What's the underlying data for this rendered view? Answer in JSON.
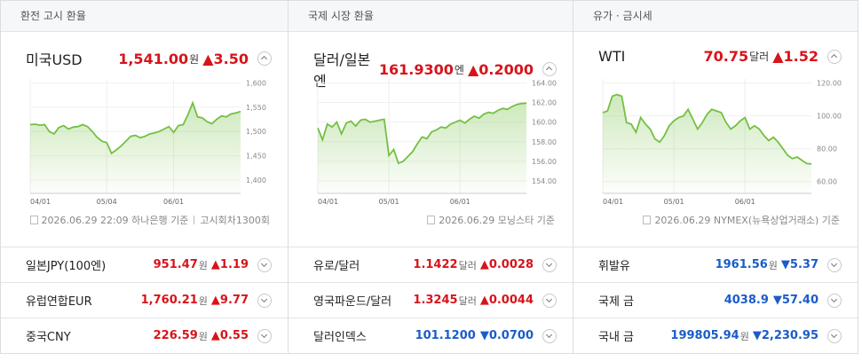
{
  "panels": [
    {
      "title": "환전 고시 환율",
      "quote": {
        "name": "미국USD",
        "price": "1,541.00",
        "unit": "원",
        "change": "▲3.50",
        "direction": "up"
      },
      "chart_data": {
        "type": "line",
        "color": "#74c043",
        "grid": true,
        "categories": [
          "04/01",
          null,
          null,
          null,
          null,
          null,
          null,
          null,
          null,
          null,
          null,
          null,
          null,
          null,
          null,
          null,
          "05/04",
          null,
          null,
          null,
          null,
          null,
          null,
          null,
          null,
          null,
          null,
          null,
          null,
          null,
          "06/01",
          null,
          null,
          null,
          null,
          null,
          null,
          null,
          null,
          null,
          null,
          null,
          null,
          null,
          null
        ],
        "values": [
          1514,
          1515,
          1513,
          1514,
          1500,
          1495,
          1508,
          1512,
          1505,
          1509,
          1510,
          1514,
          1510,
          1500,
          1488,
          1480,
          1477,
          1455,
          1462,
          1470,
          1480,
          1490,
          1492,
          1487,
          1490,
          1495,
          1497,
          1500,
          1505,
          1510,
          1498,
          1512,
          1514,
          1535,
          1559,
          1530,
          1528,
          1520,
          1516,
          1525,
          1532,
          1530,
          1536,
          1538,
          1541
        ],
        "ylim": [
          1380,
          1608
        ],
        "yticks": [
          {
            "value": 1600,
            "label": "1,600"
          },
          {
            "value": 1550,
            "label": "1,550"
          },
          {
            "value": 1500,
            "label": "1,500"
          },
          {
            "value": 1450,
            "label": "1,450"
          },
          {
            "value": 1400,
            "label": "1,400"
          }
        ]
      },
      "source": {
        "text": "2026.06.29 22:09 하나은행 기준",
        "extra": "고시회차1300회"
      },
      "rows": [
        {
          "name": "일본JPY(100엔)",
          "price": "951.47",
          "unit": "원",
          "change": "▲1.19",
          "direction": "up"
        },
        {
          "name": "유럽연합EUR",
          "price": "1,760.21",
          "unit": "원",
          "change": "▲9.77",
          "direction": "up"
        },
        {
          "name": "중국CNY",
          "price": "226.59",
          "unit": "원",
          "change": "▲0.55",
          "direction": "up"
        }
      ]
    },
    {
      "title": "국제 시장 환율",
      "quote": {
        "name": "달러/일본 엔",
        "price": "161.9300",
        "unit": "엔",
        "change": "▲0.2000",
        "direction": "up"
      },
      "chart_data": {
        "type": "line",
        "color": "#74c043",
        "grid": true,
        "categories": [
          "04/01",
          null,
          null,
          null,
          null,
          null,
          null,
          null,
          null,
          null,
          null,
          null,
          null,
          null,
          null,
          "05/01",
          null,
          null,
          null,
          null,
          null,
          null,
          null,
          null,
          null,
          null,
          null,
          null,
          null,
          null,
          "06/01",
          null,
          null,
          null,
          null,
          null,
          null,
          null,
          null,
          null,
          null,
          null,
          null,
          null,
          null
        ],
        "values": [
          159.4,
          158.2,
          159.8,
          159.5,
          160.0,
          158.8,
          159.9,
          160.1,
          159.6,
          160.2,
          160.3,
          160.0,
          160.1,
          160.2,
          160.3,
          156.6,
          157.2,
          155.8,
          156.0,
          156.5,
          157.0,
          157.8,
          158.5,
          158.3,
          159.0,
          159.2,
          159.5,
          159.4,
          159.8,
          160.0,
          160.2,
          159.9,
          160.3,
          160.6,
          160.4,
          160.8,
          161.0,
          160.9,
          161.2,
          161.4,
          161.3,
          161.6,
          161.8,
          161.9,
          161.93
        ],
        "ylim": [
          153.1,
          164.4
        ],
        "yticks": [
          {
            "value": 164,
            "label": "164.00"
          },
          {
            "value": 162,
            "label": "162.00"
          },
          {
            "value": 160,
            "label": "160.00"
          },
          {
            "value": 158,
            "label": "158.00"
          },
          {
            "value": 156,
            "label": "156.00"
          },
          {
            "value": 154,
            "label": "154.00"
          }
        ]
      },
      "source": {
        "text": "2026.06.29 모닝스타 기준"
      },
      "rows": [
        {
          "name": "유로/달러",
          "price": "1.1422",
          "unit": "달러",
          "change": "▲0.0028",
          "direction": "up"
        },
        {
          "name": "영국파운드/달러",
          "price": "1.3245",
          "unit": "달러",
          "change": "▲0.0044",
          "direction": "up"
        },
        {
          "name": "달러인덱스",
          "price": "101.1200",
          "change": "▼0.0700",
          "direction": "down"
        }
      ]
    },
    {
      "title": "유가 · 금시세",
      "quote": {
        "name": "WTI",
        "price": "70.75",
        "unit": "달러",
        "change": "▲1.52",
        "direction": "up"
      },
      "chart_data": {
        "type": "line",
        "color": "#74c043",
        "grid": true,
        "categories": [
          "04/01",
          null,
          null,
          null,
          null,
          null,
          null,
          null,
          null,
          null,
          null,
          null,
          null,
          null,
          null,
          "05/01",
          null,
          null,
          null,
          null,
          null,
          null,
          null,
          null,
          null,
          null,
          null,
          null,
          null,
          null,
          "06/01",
          null,
          null,
          null,
          null,
          null,
          null,
          null,
          null,
          null,
          null,
          null,
          null,
          null,
          null
        ],
        "values": [
          102,
          103,
          112,
          113,
          112,
          96,
          95,
          90,
          99,
          95,
          92,
          86,
          84,
          88,
          94,
          97,
          99,
          100,
          104,
          98,
          92,
          96,
          101,
          104,
          103,
          102,
          96,
          92,
          94,
          97,
          99,
          92,
          94,
          92,
          88,
          85,
          87,
          84,
          80,
          76,
          74,
          75,
          73,
          71,
          70.75
        ],
        "ylim": [
          55,
          122.5
        ],
        "yticks": [
          {
            "value": 120,
            "label": "120.00"
          },
          {
            "value": 100,
            "label": "100.00"
          },
          {
            "value": 80,
            "label": "80.00"
          },
          {
            "value": 60,
            "label": "60.00"
          }
        ]
      },
      "source": {
        "text": "2026.06.29 NYMEX(뉴욕상업거래소) 기준"
      },
      "rows": [
        {
          "name": "휘발유",
          "price": "1961.56",
          "unit": "원",
          "change": "▼5.37",
          "direction": "down"
        },
        {
          "name": "국제 금",
          "price": "4038.9",
          "change": "▼57.40",
          "direction": "down"
        },
        {
          "name": "국내 금",
          "price": "199805.94",
          "unit": "원",
          "change": "▼2,230.95",
          "direction": "down"
        }
      ]
    }
  ]
}
